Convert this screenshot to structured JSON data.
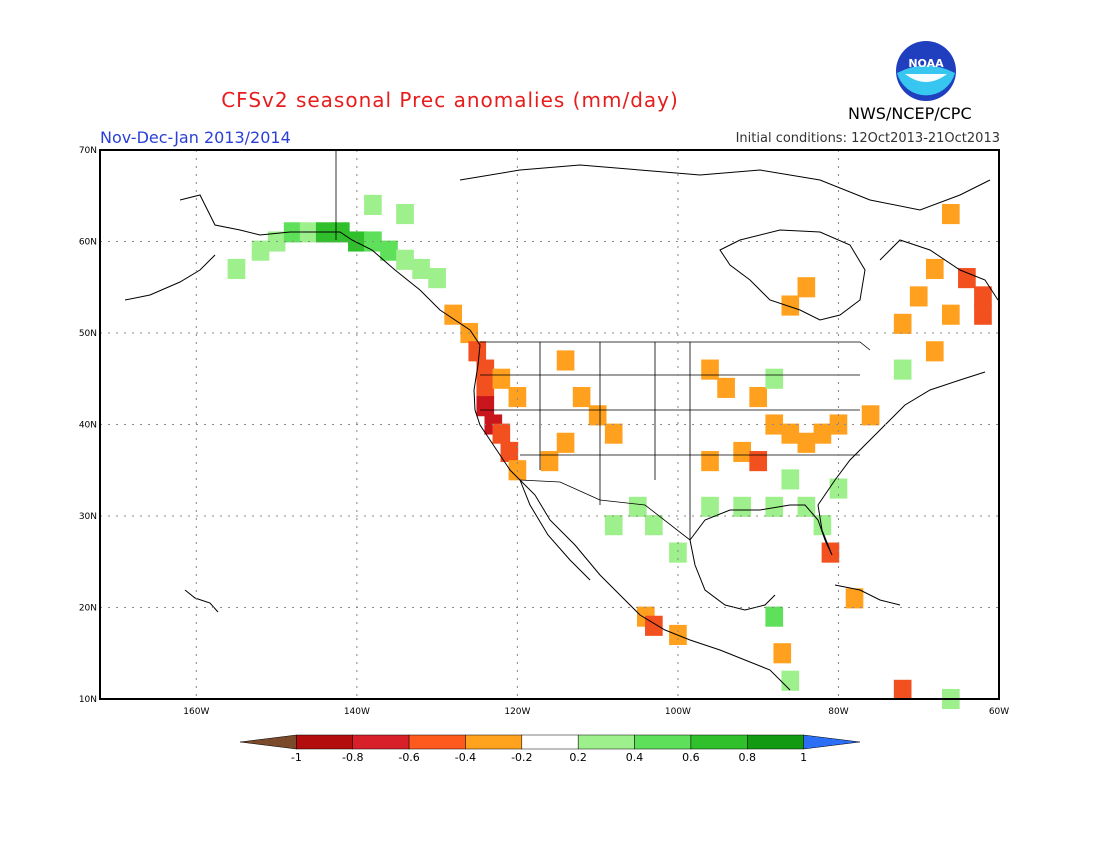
{
  "title": "CFSv2 seasonal Prec anomalies (mm/day)",
  "period": "Nov-Dec-Jan 2013/2014",
  "initial_conditions": "Initial conditions: 12Oct2013-21Oct2013",
  "agency": "NWS/NCEP/CPC",
  "logo_text": "NOAA",
  "map": {
    "lon_range": [
      -172,
      -60
    ],
    "lat_range": [
      10,
      70
    ],
    "lon_ticks": [
      {
        "value": -160,
        "label": "160W"
      },
      {
        "value": -140,
        "label": "140W"
      },
      {
        "value": -120,
        "label": "120W"
      },
      {
        "value": -100,
        "label": "100W"
      },
      {
        "value": -80,
        "label": "80W"
      },
      {
        "value": -60,
        "label": "60W"
      }
    ],
    "lat_ticks": [
      {
        "value": 10,
        "label": "10N"
      },
      {
        "value": 20,
        "label": "20N"
      },
      {
        "value": 30,
        "label": "30N"
      },
      {
        "value": 40,
        "label": "40N"
      },
      {
        "value": 50,
        "label": "50N"
      },
      {
        "value": 60,
        "label": "60N"
      },
      {
        "value": 70,
        "label": "70N"
      }
    ],
    "grid": true
  },
  "colorbar": {
    "labels": [
      "-1",
      "-0.8",
      "-0.6",
      "-0.4",
      "-0.2",
      "0.2",
      "0.4",
      "0.6",
      "0.8",
      "1"
    ],
    "colors": [
      "#7a4a2a",
      "#b30d0d",
      "#d8202a",
      "#ff5a1e",
      "#ffa31f",
      "#ffffff",
      "#9ef08c",
      "#5ee05a",
      "#2fc02b",
      "#129a12",
      "#2a6ff5"
    ]
  },
  "palette": {
    "-0.8": "#c9151c",
    "-0.6": "#f2501f",
    "-0.4": "#ffa11e",
    "0.4": "#9ef08c",
    "0.6": "#5ee05a",
    "0.8": "#2fc02b"
  },
  "anomaly_cells": [
    {
      "lon": -152,
      "lat": 59,
      "v": 0.4
    },
    {
      "lon": -150,
      "lat": 60,
      "v": 0.4
    },
    {
      "lon": -148,
      "lat": 61,
      "v": 0.6
    },
    {
      "lon": -146,
      "lat": 61,
      "v": 0.4
    },
    {
      "lon": -144,
      "lat": 61,
      "v": 0.8
    },
    {
      "lon": -142,
      "lat": 61,
      "v": 0.8
    },
    {
      "lon": -140,
      "lat": 60,
      "v": 0.8
    },
    {
      "lon": -138,
      "lat": 60,
      "v": 0.6
    },
    {
      "lon": -136,
      "lat": 59,
      "v": 0.6
    },
    {
      "lon": -134,
      "lat": 58,
      "v": 0.4
    },
    {
      "lon": -132,
      "lat": 57,
      "v": 0.4
    },
    {
      "lon": -130,
      "lat": 56,
      "v": 0.4
    },
    {
      "lon": -155,
      "lat": 57,
      "v": 0.4
    },
    {
      "lon": -138,
      "lat": 64,
      "v": 0.4
    },
    {
      "lon": -134,
      "lat": 63,
      "v": 0.4
    },
    {
      "lon": -128,
      "lat": 52,
      "v": -0.4
    },
    {
      "lon": -126,
      "lat": 50,
      "v": -0.4
    },
    {
      "lon": -125,
      "lat": 48,
      "v": -0.6
    },
    {
      "lon": -124,
      "lat": 46,
      "v": -0.6
    },
    {
      "lon": -124,
      "lat": 44,
      "v": -0.6
    },
    {
      "lon": -124,
      "lat": 42,
      "v": -0.8
    },
    {
      "lon": -123,
      "lat": 40,
      "v": -0.8
    },
    {
      "lon": -122,
      "lat": 39,
      "v": -0.6
    },
    {
      "lon": -121,
      "lat": 37,
      "v": -0.6
    },
    {
      "lon": -120,
      "lat": 35,
      "v": -0.4
    },
    {
      "lon": -122,
      "lat": 45,
      "v": -0.4
    },
    {
      "lon": -120,
      "lat": 43,
      "v": -0.4
    },
    {
      "lon": -114,
      "lat": 47,
      "v": -0.4
    },
    {
      "lon": -112,
      "lat": 43,
      "v": -0.4
    },
    {
      "lon": -110,
      "lat": 41,
      "v": -0.4
    },
    {
      "lon": -108,
      "lat": 39,
      "v": -0.4
    },
    {
      "lon": -114,
      "lat": 38,
      "v": -0.4
    },
    {
      "lon": -116,
      "lat": 36,
      "v": -0.4
    },
    {
      "lon": -96,
      "lat": 46,
      "v": -0.4
    },
    {
      "lon": -94,
      "lat": 44,
      "v": -0.4
    },
    {
      "lon": -90,
      "lat": 43,
      "v": -0.4
    },
    {
      "lon": -88,
      "lat": 40,
      "v": -0.4
    },
    {
      "lon": -86,
      "lat": 39,
      "v": -0.4
    },
    {
      "lon": -84,
      "lat": 38,
      "v": -0.4
    },
    {
      "lon": -82,
      "lat": 39,
      "v": -0.4
    },
    {
      "lon": -80,
      "lat": 40,
      "v": -0.4
    },
    {
      "lon": -76,
      "lat": 41,
      "v": -0.4
    },
    {
      "lon": -92,
      "lat": 37,
      "v": -0.4
    },
    {
      "lon": -90,
      "lat": 36,
      "v": -0.6
    },
    {
      "lon": -96,
      "lat": 36,
      "v": -0.4
    },
    {
      "lon": -84,
      "lat": 55,
      "v": -0.4
    },
    {
      "lon": -86,
      "lat": 53,
      "v": -0.4
    },
    {
      "lon": -70,
      "lat": 54,
      "v": -0.4
    },
    {
      "lon": -68,
      "lat": 57,
      "v": -0.4
    },
    {
      "lon": -66,
      "lat": 52,
      "v": -0.4
    },
    {
      "lon": -72,
      "lat": 51,
      "v": -0.4
    },
    {
      "lon": -62,
      "lat": 54,
      "v": -0.6
    },
    {
      "lon": -62,
      "lat": 52,
      "v": -0.6
    },
    {
      "lon": -64,
      "lat": 56,
      "v": -0.6
    },
    {
      "lon": -66,
      "lat": 63,
      "v": -0.4
    },
    {
      "lon": -68,
      "lat": 48,
      "v": -0.4
    },
    {
      "lon": -104,
      "lat": 19,
      "v": -0.4
    },
    {
      "lon": -103,
      "lat": 18,
      "v": -0.6
    },
    {
      "lon": -100,
      "lat": 17,
      "v": -0.4
    },
    {
      "lon": -81,
      "lat": 26,
      "v": -0.6
    },
    {
      "lon": -78,
      "lat": 21,
      "v": -0.4
    },
    {
      "lon": -87,
      "lat": 15,
      "v": -0.4
    },
    {
      "lon": -72,
      "lat": 11,
      "v": -0.6
    },
    {
      "lon": -105,
      "lat": 31,
      "v": 0.4
    },
    {
      "lon": -103,
      "lat": 29,
      "v": 0.4
    },
    {
      "lon": -100,
      "lat": 26,
      "v": 0.4
    },
    {
      "lon": -108,
      "lat": 29,
      "v": 0.4
    },
    {
      "lon": -96,
      "lat": 31,
      "v": 0.4
    },
    {
      "lon": -92,
      "lat": 31,
      "v": 0.4
    },
    {
      "lon": -88,
      "lat": 31,
      "v": 0.4
    },
    {
      "lon": -84,
      "lat": 31,
      "v": 0.4
    },
    {
      "lon": -82,
      "lat": 29,
      "v": 0.4
    },
    {
      "lon": -86,
      "lat": 34,
      "v": 0.4
    },
    {
      "lon": -80,
      "lat": 33,
      "v": 0.4
    },
    {
      "lon": -72,
      "lat": 46,
      "v": 0.4
    },
    {
      "lon": -88,
      "lat": 19,
      "v": 0.6
    },
    {
      "lon": -86,
      "lat": 12,
      "v": 0.4
    },
    {
      "lon": -66,
      "lat": 10,
      "v": 0.4
    },
    {
      "lon": -88,
      "lat": 45,
      "v": 0.4
    }
  ]
}
